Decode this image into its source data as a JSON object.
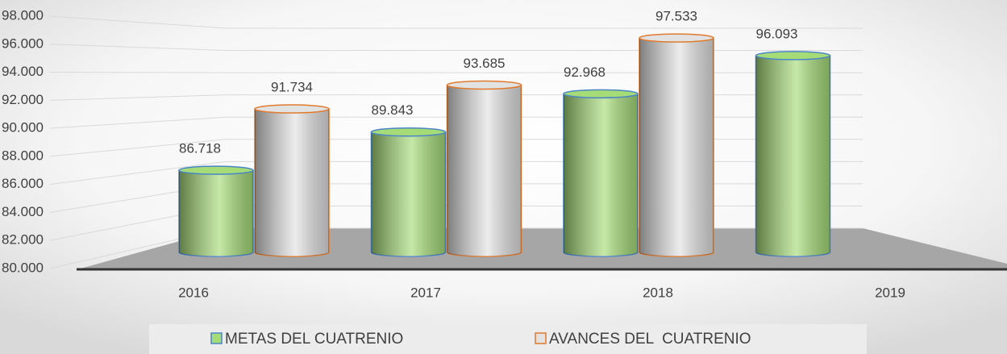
{
  "chart_data": {
    "type": "bar3d",
    "categories": [
      "2016",
      "2017",
      "2018",
      "2019"
    ],
    "series": [
      {
        "name": "METAS DEL CUATRENIO",
        "color": "#a6dc78",
        "border_color": "#4a86c5",
        "values": [
          86718,
          89843,
          92968,
          96093
        ],
        "value_labels": [
          "86.718",
          "89.843",
          "92.968",
          "96.093"
        ]
      },
      {
        "name": "AVANCES DEL  CUATRENIO",
        "color": "#e2e2e2",
        "border_color": "#e07a2e",
        "values": [
          91734,
          93685,
          97533,
          null
        ],
        "value_labels": [
          "91.734",
          "93.685",
          "97.533",
          null
        ]
      }
    ],
    "ylim": [
      80000,
      98000
    ],
    "yticks": [
      {
        "value": 80000,
        "label": "80.000"
      },
      {
        "value": 82000,
        "label": "82.000"
      },
      {
        "value": 84000,
        "label": "84.000"
      },
      {
        "value": 86000,
        "label": "86.000"
      },
      {
        "value": 88000,
        "label": "88.000"
      },
      {
        "value": 90000,
        "label": "90.000"
      },
      {
        "value": 92000,
        "label": "92.000"
      },
      {
        "value": 94000,
        "label": "94.000"
      },
      {
        "value": 96000,
        "label": "96.000"
      },
      {
        "value": 98000,
        "label": "98.000"
      }
    ],
    "grid": true,
    "legend": "bottom"
  }
}
